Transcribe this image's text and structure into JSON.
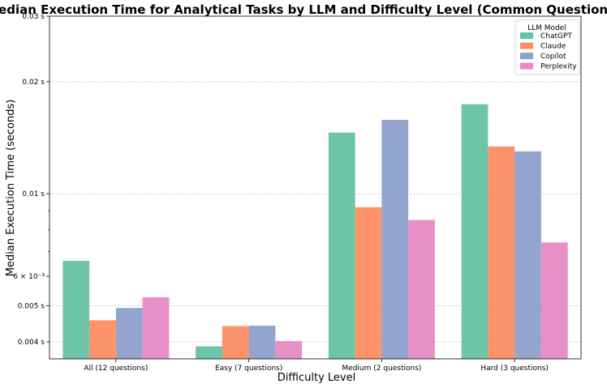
{
  "chart_data": {
    "type": "bar",
    "title": "Median Execution Time for Analytical Tasks by LLM and Difficulty Level (Common Questions)",
    "xlabel": "Difficulty Level",
    "ylabel": "Median Execution Time (seconds)",
    "y_scale": "log",
    "ylim": [
      0.0036,
      0.03
    ],
    "grid": "y-major dotted",
    "categories": [
      "All (12 questions)",
      "Easy (7 questions)",
      "Medium (2 questions)",
      "Hard (3 questions)"
    ],
    "y_ticks": [
      {
        "value": 0.004,
        "label": "0.004 s"
      },
      {
        "value": 0.005,
        "label": "0.005 s"
      },
      {
        "value": 0.006,
        "label": "6 × 10⁻³"
      },
      {
        "value": 0.01,
        "label": "0.01 s"
      },
      {
        "value": 0.02,
        "label": "0.02 s"
      },
      {
        "value": 0.03,
        "label": "0.03 s"
      }
    ],
    "y_minor_ticks": [
      0.007,
      0.008,
      0.009
    ],
    "gridline_values": [
      0.004,
      0.005,
      0.01,
      0.02
    ],
    "legend": {
      "title": "LLM Model",
      "position": "top-right"
    },
    "series": [
      {
        "name": "ChatGPT",
        "color": "#66c2a5",
        "values": [
          0.0066,
          0.00389,
          0.0146,
          0.0174
        ]
      },
      {
        "name": "Claude",
        "color": "#fc8d62",
        "values": [
          0.00457,
          0.00441,
          0.0092,
          0.0134
        ]
      },
      {
        "name": "Copilot",
        "color": "#8da0cb",
        "values": [
          0.00493,
          0.00442,
          0.0158,
          0.013
        ]
      },
      {
        "name": "Perplexity",
        "color": "#e78ac3",
        "values": [
          0.00527,
          0.00402,
          0.0085,
          0.0074
        ]
      }
    ]
  }
}
